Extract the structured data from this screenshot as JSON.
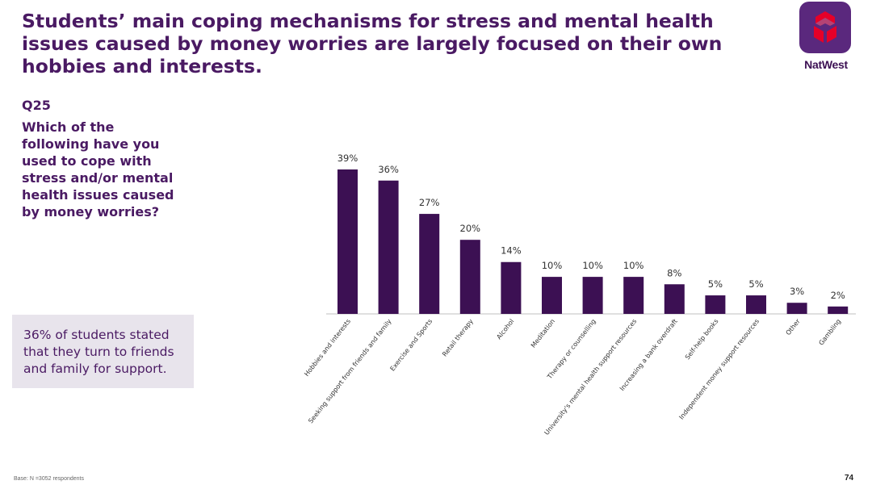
{
  "title": "Students’ main coping mechanisms for stress and mental health issues caused by money worries are largely focused on their own hobbies and interests.",
  "brand": {
    "name": "NatWest",
    "color": "#5a287d",
    "logo_icon": "natwest-cubes-logo"
  },
  "question": {
    "number": "Q25",
    "text": "Which of the following have you used to cope with stress and/or mental health issues caused by money worries?"
  },
  "callout": {
    "text": "36% of students stated that they turn to friends and family for support."
  },
  "footer": {
    "base": "Base: N =3052 respondents",
    "page": "74"
  },
  "chart_data": {
    "type": "bar",
    "title": "",
    "xlabel": "",
    "ylabel": "",
    "ylim": [
      0,
      45
    ],
    "grid": false,
    "bar_color": "#3c1053",
    "categories": [
      "Hobbies and interests",
      "Seeking support from friends and family",
      "Exercise and Sports",
      "Retail therapy",
      "Alcohol",
      "Meditation",
      "Therapy or counselling",
      "University's mental health support resources",
      "Increasing a bank overdraft",
      "Self-help books",
      "Independent money support resources",
      "Other",
      "Gambling"
    ],
    "values": [
      39,
      36,
      27,
      20,
      14,
      10,
      10,
      10,
      8,
      5,
      5,
      3,
      2
    ],
    "value_labels": [
      "39%",
      "36%",
      "27%",
      "20%",
      "14%",
      "10%",
      "10%",
      "10%",
      "8%",
      "5%",
      "5%",
      "3%",
      "2%"
    ]
  }
}
